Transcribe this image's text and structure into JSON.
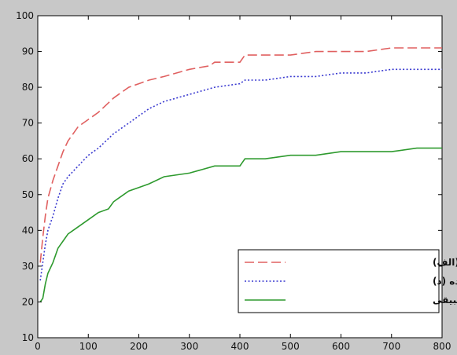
{
  "chart_data": {
    "type": "line",
    "title": "",
    "xlabel": "",
    "ylabel": "",
    "xlim": [
      0,
      800
    ],
    "ylim": [
      10,
      100
    ],
    "xticks": [
      0,
      100,
      200,
      300,
      400,
      500,
      600,
      700,
      800
    ],
    "yticks": [
      10,
      20,
      30,
      40,
      50,
      60,
      70,
      80,
      90,
      100
    ],
    "grid": false,
    "legend_position": "bottom-right",
    "series": [
      {
        "name": "روابط دارای قاعده (الف)",
        "color": "#e06060",
        "style": "dashed",
        "x": [
          5,
          10,
          15,
          20,
          30,
          40,
          50,
          60,
          70,
          80,
          100,
          120,
          150,
          160,
          180,
          200,
          220,
          250,
          300,
          340,
          350,
          400,
          410,
          450,
          500,
          550,
          600,
          650,
          700,
          750,
          800
        ],
        "y": [
          31,
          38,
          44,
          49,
          54,
          58,
          62,
          65,
          67,
          69,
          71,
          73,
          77,
          78,
          80,
          81,
          82,
          83,
          85,
          86,
          87,
          87,
          89,
          89,
          89,
          90,
          90,
          90,
          91,
          91,
          91
        ]
      },
      {
        "name": "روابط دارای قاعده (د)",
        "color": "#3a3ad0",
        "style": "dotted",
        "x": [
          5,
          10,
          15,
          20,
          30,
          40,
          50,
          60,
          80,
          100,
          120,
          150,
          180,
          200,
          220,
          250,
          300,
          350,
          400,
          410,
          450,
          500,
          550,
          600,
          650,
          700,
          750,
          800
        ],
        "y": [
          26,
          31,
          36,
          40,
          44,
          49,
          53,
          55,
          58,
          61,
          63,
          67,
          70,
          72,
          74,
          76,
          78,
          80,
          81,
          82,
          82,
          83,
          83,
          84,
          84,
          85,
          85,
          85
        ]
      },
      {
        "name": "دقت با انتخاب تطبیقی",
        "color": "#2e9a2e",
        "style": "solid",
        "x": [
          5,
          10,
          15,
          20,
          30,
          40,
          50,
          60,
          70,
          80,
          100,
          120,
          140,
          150,
          160,
          180,
          200,
          220,
          250,
          300,
          350,
          400,
          410,
          450,
          500,
          550,
          600,
          650,
          700,
          750,
          800
        ],
        "y": [
          20,
          21,
          25,
          28,
          31,
          35,
          37,
          39,
          40,
          41,
          43,
          45,
          46,
          48,
          49,
          51,
          52,
          53,
          55,
          56,
          58,
          58,
          60,
          60,
          61,
          61,
          62,
          62,
          62,
          63,
          63
        ]
      }
    ]
  }
}
